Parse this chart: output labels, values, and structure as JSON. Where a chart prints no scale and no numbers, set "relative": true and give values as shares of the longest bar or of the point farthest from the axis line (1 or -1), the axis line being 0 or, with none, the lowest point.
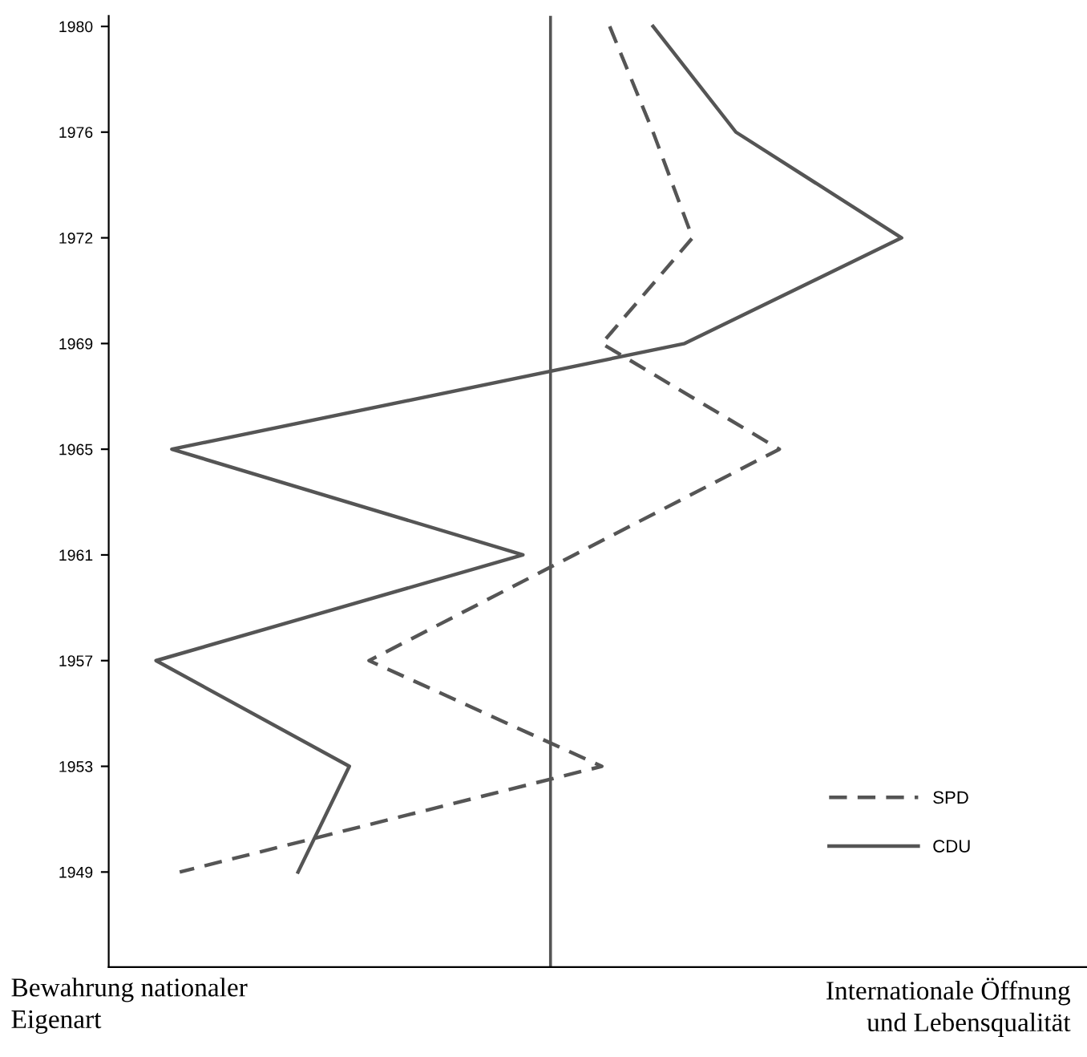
{
  "chart_data": {
    "type": "line",
    "orientation": "horizontal",
    "relative": true,
    "categories": [
      "1980",
      "1976",
      "1972",
      "1969",
      "1965",
      "1961",
      "1957",
      "1953",
      "1949"
    ],
    "series": [
      {
        "name": "SPD",
        "color": "#555555",
        "line_style": "dashed",
        "values": [
          0.15,
          0.26,
          0.36,
          0.13,
          0.58,
          0.06,
          -0.46,
          0.13,
          -0.94
        ]
      },
      {
        "name": "CDU",
        "color": "#555555",
        "line_style": "solid",
        "values": [
          0.26,
          0.47,
          0.89,
          0.34,
          -0.96,
          -0.07,
          -1,
          -0.51,
          -0.64
        ]
      }
    ],
    "ref_lines": [
      {
        "axis": "x",
        "value": 0,
        "color": "#555555"
      }
    ],
    "annotations": [
      "Bewahrung nationaler\nEigenart",
      "Internationale Öffnung\nund Lebensqualität"
    ],
    "legend": "bottom right",
    "grid": false,
    "marker": "none"
  }
}
